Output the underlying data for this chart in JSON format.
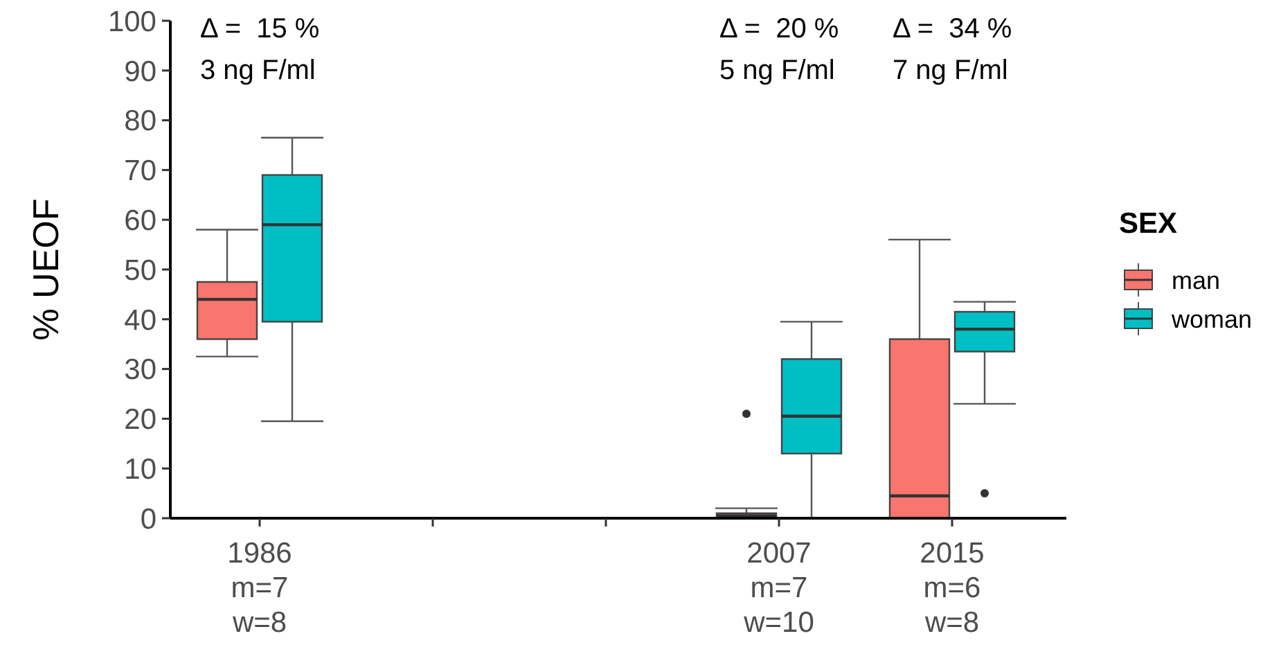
{
  "chart_data": {
    "type": "box",
    "ylabel": "% UEOF",
    "legend_title": "SEX",
    "legend": "right",
    "grid": false,
    "categories": [
      "1986\nm=7\nw=8",
      null,
      null,
      "2007\nm=7\nw=10",
      "2015\nm=6\nw=8"
    ],
    "ylim": [
      0,
      100
    ],
    "yticks": [
      0,
      10,
      20,
      30,
      40,
      50,
      60,
      70,
      80,
      90,
      100
    ],
    "series": [
      {
        "name": "man",
        "color": "#f8766d",
        "boxes": [
          {
            "low": 32.5,
            "q1": 36,
            "median": 44,
            "q3": 47.5,
            "high": 58
          },
          null,
          null,
          {
            "low": 0,
            "q1": 0,
            "median": 0.5,
            "q3": 1,
            "high": 2,
            "outliers": [
              21
            ]
          },
          {
            "low": 0,
            "q1": 0,
            "median": 4.5,
            "q3": 36,
            "high": 56
          }
        ]
      },
      {
        "name": "woman",
        "color": "#00bfc4",
        "boxes": [
          {
            "low": 19.5,
            "q1": 39.5,
            "median": 59,
            "q3": 69,
            "high": 76.5
          },
          null,
          null,
          {
            "low": 0,
            "q1": 13,
            "median": 20.5,
            "q3": 32,
            "high": 39.5
          },
          {
            "low": 23,
            "q1": 33.5,
            "median": 38,
            "q3": 41.5,
            "high": 43.5,
            "outliers": [
              5
            ]
          }
        ]
      }
    ],
    "annotations": [
      "Δ =  15 %\n3 ng F/ml",
      "Δ =  20 %\n5 ng F/ml",
      "Δ =  34 %\n7 ng F/ml"
    ]
  }
}
